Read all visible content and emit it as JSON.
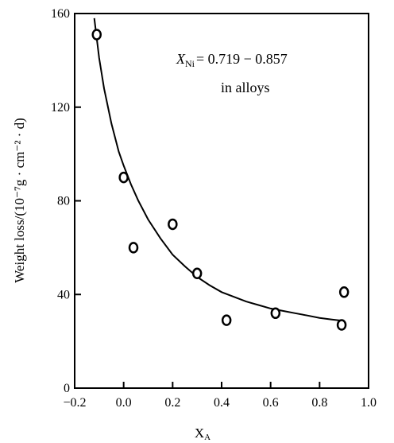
{
  "chart_data": {
    "type": "scatter",
    "title": "",
    "xlabel": "X",
    "xlabel_sub": "A",
    "ylabel": "Weight loss/(10⁻⁷g · cm⁻² · d)",
    "xlim": [
      -0.2,
      1.0
    ],
    "ylim": [
      0,
      160
    ],
    "x_ticks": [
      -0.2,
      0.0,
      0.2,
      0.4,
      0.6,
      0.8,
      1.0
    ],
    "x_tick_labels": [
      "−0.2",
      "0.0",
      "0.2",
      "0.4",
      "0.6",
      "0.8",
      "1.0"
    ],
    "y_ticks": [
      0,
      40,
      80,
      120,
      160
    ],
    "y_tick_labels": [
      "0",
      "40",
      "80",
      "120",
      "160"
    ],
    "grid": false,
    "annotation": {
      "main": "X",
      "sub": "Ni",
      "rest": "= 0.719 − 0.857",
      "line2": "in alloys"
    },
    "series": [
      {
        "kind": "points",
        "x": [
          -0.11,
          0.0,
          0.04,
          0.2,
          0.3,
          0.42,
          0.62,
          0.89,
          0.9
        ],
        "y": [
          151,
          90,
          60,
          70,
          49,
          29,
          32,
          27,
          41
        ]
      },
      {
        "kind": "fit-curve",
        "x": [
          -0.12,
          -0.1,
          -0.08,
          -0.05,
          -0.02,
          0.0,
          0.03,
          0.06,
          0.1,
          0.15,
          0.2,
          0.25,
          0.3,
          0.35,
          0.4,
          0.45,
          0.5,
          0.55,
          0.6,
          0.65,
          0.7,
          0.75,
          0.8,
          0.85,
          0.9
        ],
        "y": [
          158,
          141,
          128,
          113,
          101,
          95,
          87,
          80,
          72,
          64,
          57,
          52,
          47.5,
          44,
          41,
          39,
          37,
          35.5,
          34,
          33,
          32,
          31,
          30,
          29.3,
          28.7
        ]
      }
    ]
  }
}
